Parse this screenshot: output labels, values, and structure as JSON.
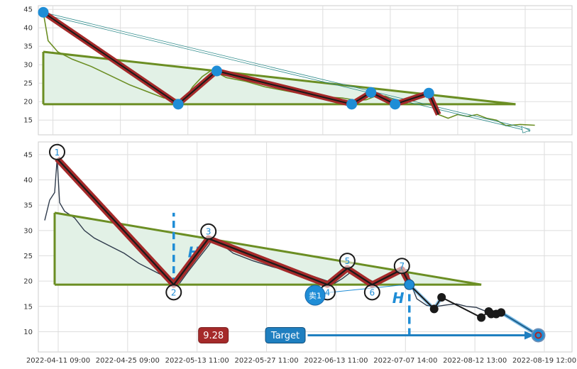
{
  "chart_data": [
    {
      "type": "line",
      "title": "",
      "ylim": [
        11,
        46
      ],
      "yticks": [
        15,
        20,
        25,
        30,
        35,
        40,
        45
      ],
      "colors": {
        "price": "#6b8e23",
        "zigzag_outer": "#a52a2a",
        "zigzag_inner": "#1a1a1a",
        "pivot": "#1f8dd6",
        "triangle": "#6b8e23",
        "fill": "#e2f1e6",
        "arrow": "#2e8b8b"
      },
      "price_series": [
        [
          0,
          44.2
        ],
        [
          1,
          36.5
        ],
        [
          3,
          33.5
        ],
        [
          6,
          31.5
        ],
        [
          10,
          29.5
        ],
        [
          14,
          27.0
        ],
        [
          18,
          24.5
        ],
        [
          22,
          22.5
        ],
        [
          25,
          21.0
        ],
        [
          28,
          20.5
        ],
        [
          29,
          20.0
        ],
        [
          31,
          24.0
        ],
        [
          33,
          26.8
        ],
        [
          35,
          28.6
        ],
        [
          38,
          26.5
        ],
        [
          42,
          25.5
        ],
        [
          46,
          24.0
        ],
        [
          50,
          23.0
        ],
        [
          54,
          22.0
        ],
        [
          58,
          21.3
        ],
        [
          62,
          21.0
        ],
        [
          65,
          20.3
        ],
        [
          67,
          20.5
        ],
        [
          69,
          21.5
        ],
        [
          71,
          21.5
        ],
        [
          73,
          20.5
        ],
        [
          75,
          20.0
        ],
        [
          77,
          20.3
        ],
        [
          79,
          21.5
        ],
        [
          80,
          22.3
        ],
        [
          82,
          16.5
        ],
        [
          84,
          15.5
        ],
        [
          86,
          16.5
        ],
        [
          88,
          16.0
        ],
        [
          90,
          16.5
        ],
        [
          92,
          15.5
        ],
        [
          94,
          15.0
        ],
        [
          96,
          13.5
        ],
        [
          99,
          13.8
        ],
        [
          102,
          13.6
        ]
      ],
      "zigzag": [
        [
          0,
          44.2
        ],
        [
          28,
          19.3
        ],
        [
          36,
          28.3
        ],
        [
          64,
          19.3
        ],
        [
          68,
          22.5
        ],
        [
          73,
          19.3
        ],
        [
          80,
          22.3
        ],
        [
          82,
          16.5
        ]
      ],
      "pivots": [
        [
          0,
          44.2
        ],
        [
          28,
          19.3
        ],
        [
          36,
          28.3
        ],
        [
          64,
          19.3
        ],
        [
          68,
          22.5
        ],
        [
          73,
          19.3
        ],
        [
          80,
          22.3
        ]
      ],
      "triangle": {
        "top": [
          [
            0,
            33.5
          ],
          [
            98,
            19.3
          ]
        ],
        "bottom": [
          [
            0,
            19.3
          ],
          [
            98,
            19.3
          ]
        ]
      },
      "arrow": [
        [
          0,
          44.2
        ],
        [
          101,
          12.5
        ]
      ]
    },
    {
      "type": "line",
      "title": "",
      "ylim": [
        6,
        47.5
      ],
      "yticks": [
        10,
        15,
        20,
        25,
        30,
        35,
        40,
        45
      ],
      "xticks": [
        "2022-04-11 09:00",
        "2022-04-25 09:00",
        "2022-05-13 11:00",
        "2022-05-27 11:00",
        "2022-06-13 11:00",
        "2022-07-07 14:00",
        "2022-08-12 13:00",
        "2022-08-19 12:00"
      ],
      "xtick_pos": [
        0,
        14,
        28,
        42,
        56,
        70,
        84,
        98
      ],
      "colors": {
        "price": "#2f3b4c",
        "zigzag_outer": "#a52a2a",
        "zigzag_inner": "#1a1a1a",
        "circle": "#1a1a1a",
        "triangle": "#6b8e23",
        "fill": "#e2f1e6",
        "h_line": "#1f8dd6",
        "target": "#1f7fc0",
        "value_badge": "#a52a2a",
        "sell_marker": "#1f8dd6",
        "forecast": "#1a1a1a"
      },
      "price_series": [
        [
          -2,
          32.0
        ],
        [
          -1,
          36.0
        ],
        [
          0,
          37.5
        ],
        [
          0.5,
          44.2
        ],
        [
          1,
          35.5
        ],
        [
          2,
          33.8
        ],
        [
          4,
          32.5
        ],
        [
          6,
          30.0
        ],
        [
          8,
          28.5
        ],
        [
          11,
          27.0
        ],
        [
          14,
          25.5
        ],
        [
          17,
          23.5
        ],
        [
          20,
          22.0
        ],
        [
          22,
          21.0
        ],
        [
          24,
          20.0
        ],
        [
          25,
          19.3
        ],
        [
          27,
          22.0
        ],
        [
          29,
          24.5
        ],
        [
          31,
          27.0
        ],
        [
          32,
          28.6
        ],
        [
          34,
          27.0
        ],
        [
          36,
          25.5
        ],
        [
          40,
          24.0
        ],
        [
          44,
          22.8
        ],
        [
          48,
          21.8
        ],
        [
          52,
          21.0
        ],
        [
          55,
          20.0
        ],
        [
          56,
          19.3
        ],
        [
          58,
          20.5
        ],
        [
          60,
          22.0
        ],
        [
          62,
          21.0
        ],
        [
          64,
          20.0
        ],
        [
          65,
          19.5
        ],
        [
          67,
          20.5
        ],
        [
          70,
          22.0
        ],
        [
          71,
          22.3
        ],
        [
          72,
          19.0
        ],
        [
          73,
          16.5
        ],
        [
          75,
          15.2
        ],
        [
          77,
          15.0
        ],
        [
          79,
          15.3
        ],
        [
          81,
          15.5
        ],
        [
          83,
          15.0
        ],
        [
          85,
          14.8
        ],
        [
          87,
          14.0
        ],
        [
          90,
          13.8
        ]
      ],
      "zigzag": [
        [
          0.5,
          44.2
        ],
        [
          24,
          19.3
        ],
        [
          31,
          28.4
        ],
        [
          55,
          19.3
        ],
        [
          59,
          22.5
        ],
        [
          64,
          19.3
        ],
        [
          70,
          22.3
        ],
        [
          71.5,
          19.5
        ]
      ],
      "numbered_pivots": [
        {
          "label": "1",
          "x": 0.5,
          "y": 45.5
        },
        {
          "label": "2",
          "x": 24,
          "y": 17.8
        },
        {
          "label": "3",
          "x": 31,
          "y": 29.8
        },
        {
          "label": "4",
          "x": 55,
          "y": 17.8
        },
        {
          "label": "5",
          "x": 59,
          "y": 24.0
        },
        {
          "label": "6",
          "x": 64,
          "y": 17.8
        },
        {
          "label": "7",
          "x": 70,
          "y": 23.0
        }
      ],
      "triangle": {
        "top": [
          [
            0,
            33.5
          ],
          [
            86,
            19.3
          ]
        ],
        "bottom": [
          [
            0,
            19.3
          ],
          [
            86,
            19.3
          ]
        ]
      },
      "h_lines": [
        {
          "label": "H",
          "x": 24,
          "y1": 19.3,
          "y2": 33.5
        },
        {
          "label": "H",
          "x": 71.5,
          "y1": 9.3,
          "y2": 19.3
        }
      ],
      "sell_marker": {
        "label": "卖1",
        "x": 52.5,
        "y": 17.2
      },
      "forecast": [
        [
          71.5,
          19.3
        ],
        [
          76.5,
          14.5
        ],
        [
          78,
          16.8
        ],
        [
          86,
          12.8
        ],
        [
          87.5,
          14.0
        ],
        [
          88,
          13.5
        ],
        [
          89,
          13.5
        ],
        [
          90,
          13.8
        ],
        [
          97.5,
          9.3
        ]
      ],
      "target_point": [
        97.5,
        9.3
      ],
      "value_badge": {
        "label": "9.28",
        "x": 32,
        "y": 9.3
      },
      "target_badge": {
        "label": "Target",
        "x": 46.5,
        "y": 9.3
      },
      "target_arrow": [
        [
          51,
          9.3
        ],
        [
          95,
          9.3
        ]
      ]
    }
  ]
}
